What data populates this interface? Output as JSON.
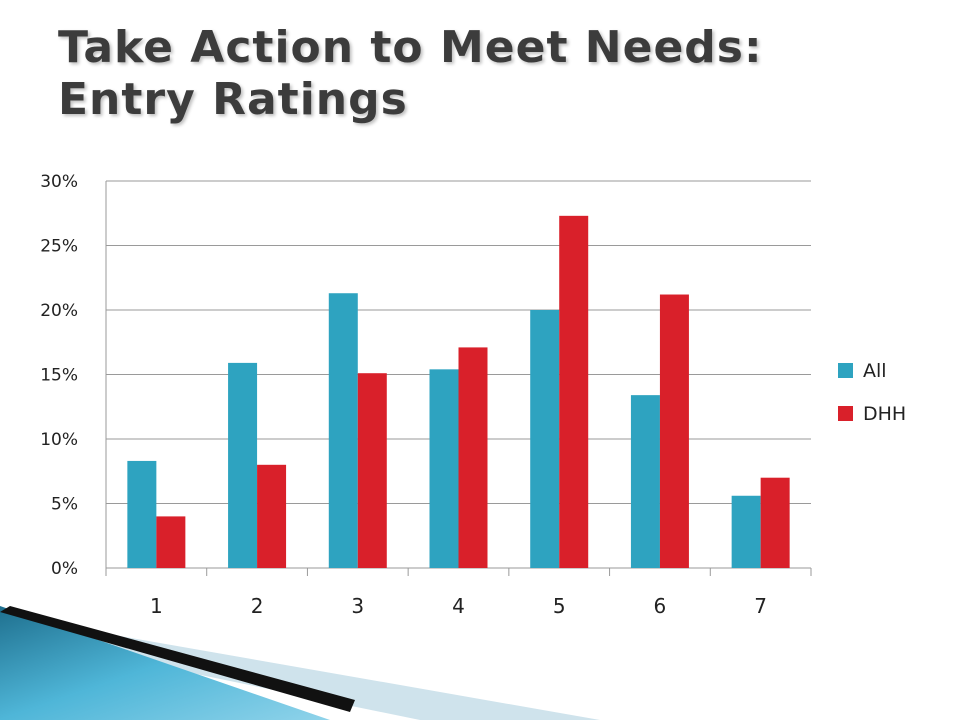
{
  "title": {
    "line1": "Take Action to Meet Needs:",
    "line2": "Entry Ratings"
  },
  "colors": {
    "all": "#2ea3c0",
    "dhh": "#d9202a",
    "grid": "#9a9a9a",
    "axis": "#9a9a9a"
  },
  "chart_data": {
    "type": "bar",
    "title": "",
    "xlabel": "",
    "ylabel": "",
    "categories": [
      "1",
      "2",
      "3",
      "4",
      "5",
      "6",
      "7"
    ],
    "series": [
      {
        "name": "All",
        "values": [
          8.3,
          15.9,
          21.3,
          15.4,
          20.0,
          13.4,
          5.6
        ]
      },
      {
        "name": "DHH",
        "values": [
          4.0,
          8.0,
          15.1,
          17.1,
          27.3,
          21.2,
          7.0
        ]
      }
    ],
    "ylim": [
      0,
      30
    ],
    "yticks": [
      "0%",
      "5%",
      "10%",
      "15%",
      "20%",
      "25%",
      "30%"
    ],
    "ytick_values": [
      0,
      5,
      10,
      15,
      20,
      25,
      30
    ],
    "grid": true,
    "legend": "right"
  }
}
